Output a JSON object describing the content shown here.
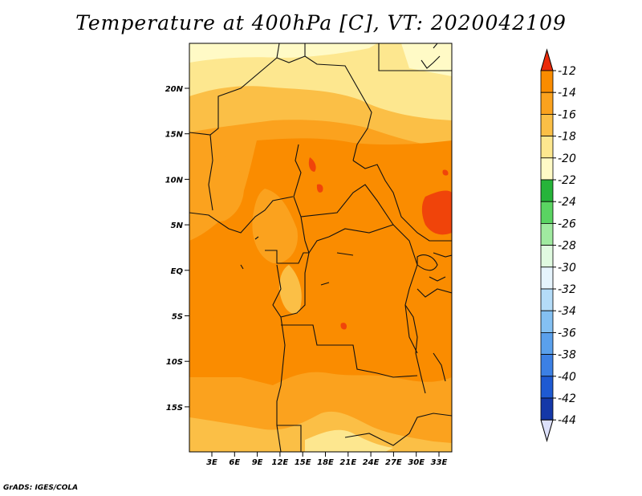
{
  "title": "Temperature at 400hPa [C], VT: 2020042109",
  "credit": "GrADS: IGES/COLA",
  "map": {
    "lat_ticks": [
      "20N",
      "15N",
      "10N",
      "5N",
      "EQ",
      "5S",
      "10S",
      "15S"
    ],
    "lon_ticks": [
      "3E",
      "6E",
      "9E",
      "12E",
      "15E",
      "18E",
      "21E",
      "24E",
      "27E",
      "30E",
      "33E"
    ],
    "lat_range": [
      -20,
      24
    ],
    "lon_range": [
      0,
      35
    ],
    "field": "temperature",
    "level": "400hPa",
    "unit": "C"
  },
  "colorbar": {
    "levels": [
      {
        "label": "-12",
        "color": "#f0440a"
      },
      {
        "label": "-14",
        "color": "#fa8c00"
      },
      {
        "label": "-16",
        "color": "#fba21e"
      },
      {
        "label": "-18",
        "color": "#fbbf46"
      },
      {
        "label": "-20",
        "color": "#fde78f"
      },
      {
        "label": "-22",
        "color": "#fffac6"
      },
      {
        "label": "-24",
        "color": "#26b43a"
      },
      {
        "label": "-26",
        "color": "#5ad462"
      },
      {
        "label": "-28",
        "color": "#a0eaa0"
      },
      {
        "label": "-30",
        "color": "#e0fae0"
      },
      {
        "label": "-32",
        "color": "#e6f4fc"
      },
      {
        "label": "-34",
        "color": "#b4dcf8"
      },
      {
        "label": "-36",
        "color": "#84c0f2"
      },
      {
        "label": "-38",
        "color": "#5aa0ec"
      },
      {
        "label": "-40",
        "color": "#3c80e4"
      },
      {
        "label": "-42",
        "color": "#1e5ad2"
      },
      {
        "label": "-44",
        "color": "#1438a8"
      }
    ],
    "top_cap_color": "#ea2a0a",
    "bottom_cap_color": "#0a0a78",
    "low_extra_color": "#dce0fa"
  }
}
